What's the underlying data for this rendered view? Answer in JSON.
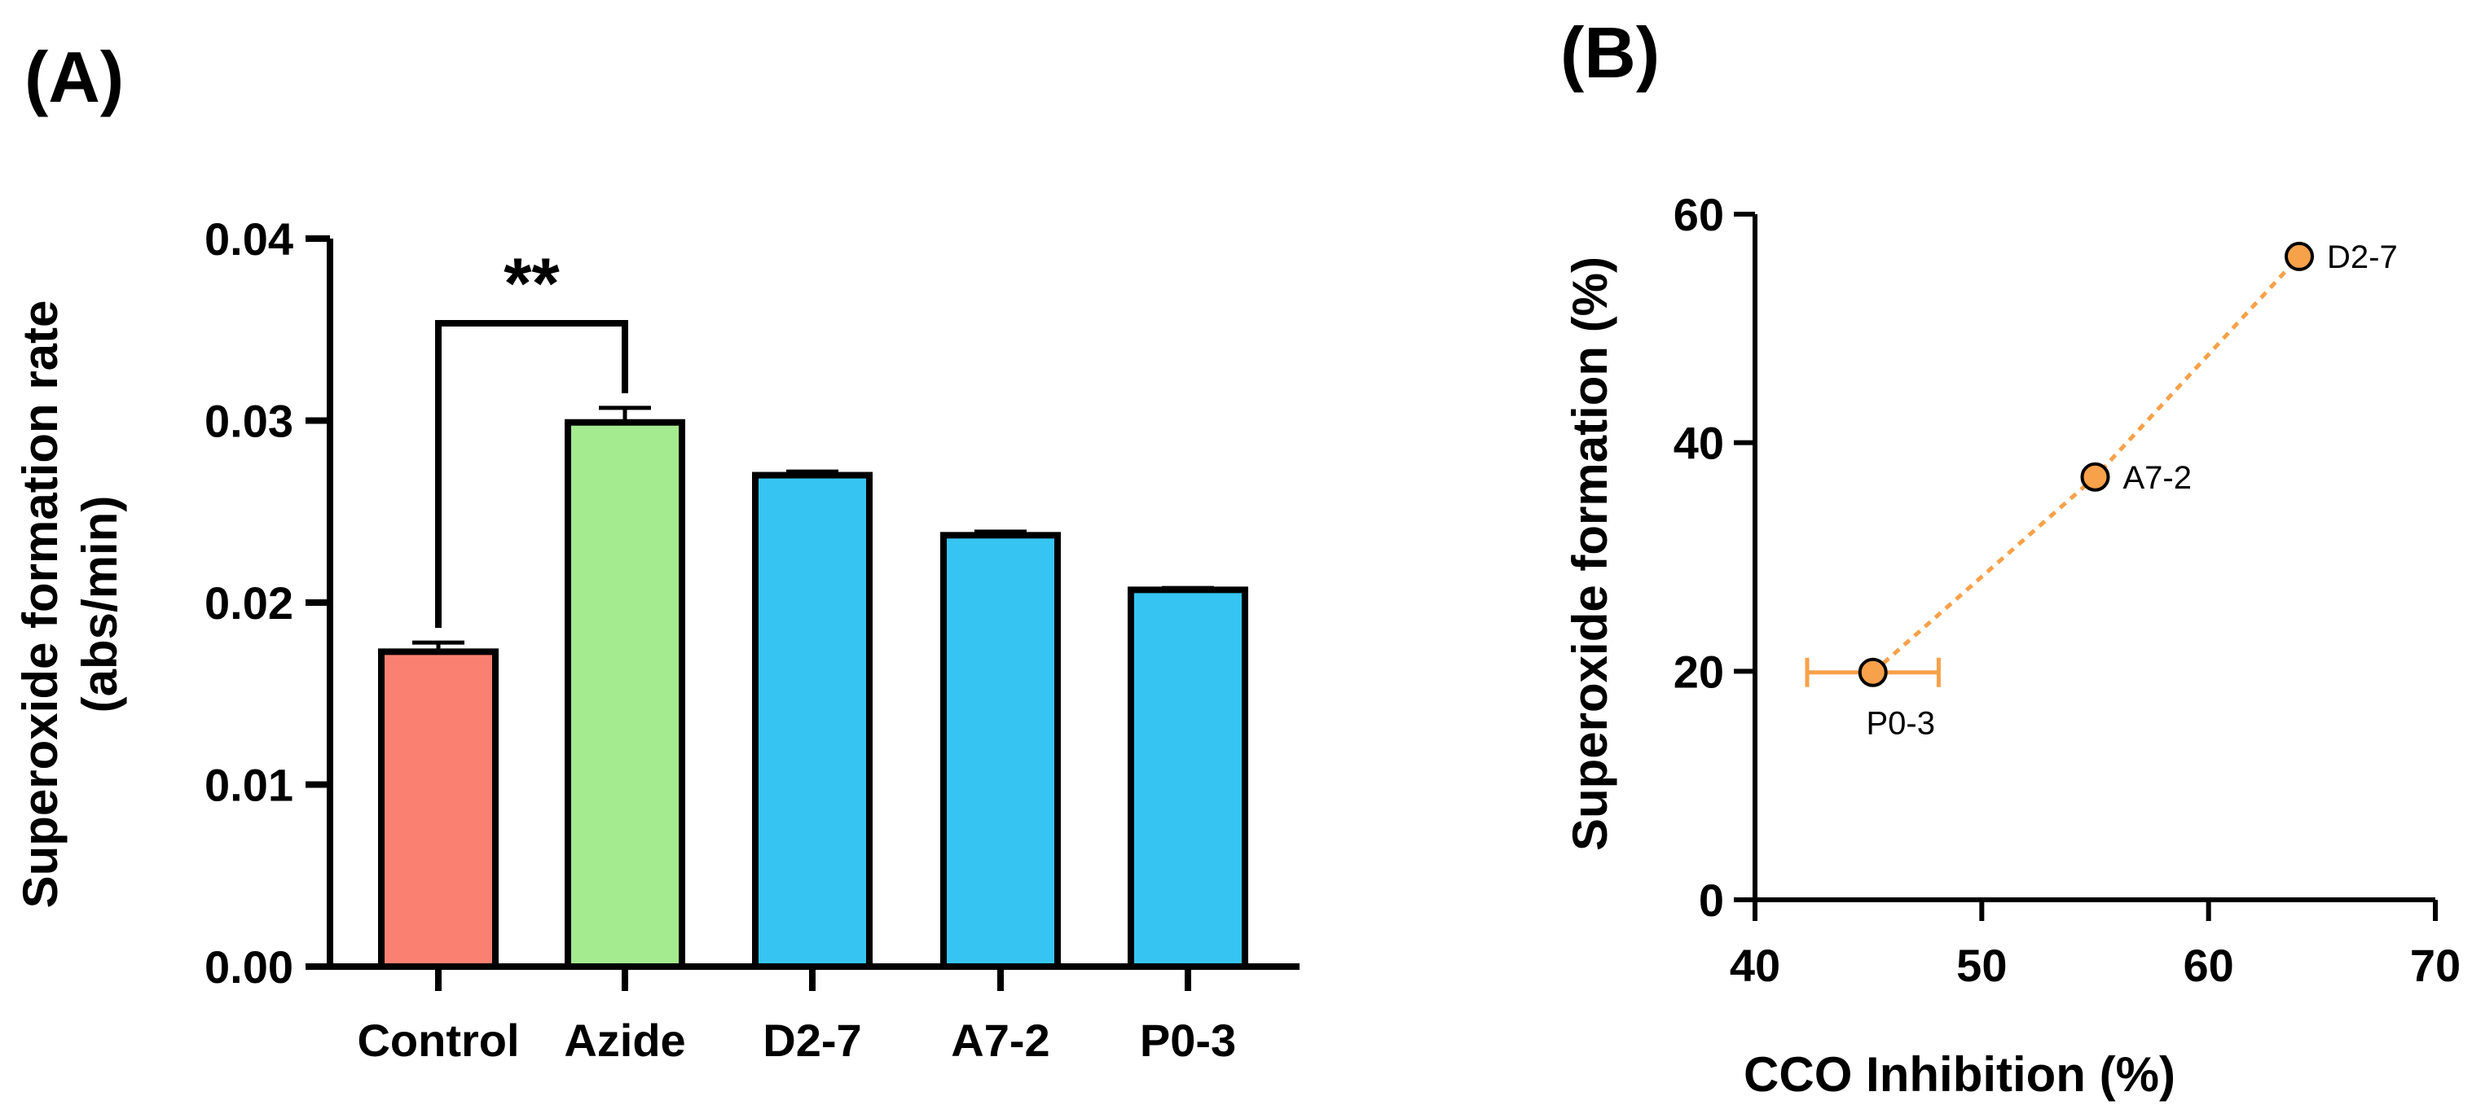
{
  "chart_data": [
    {
      "panel_label": "(A)",
      "type": "bar",
      "categories": [
        "Control",
        "Azide",
        "D2-7",
        "A7-2",
        "P0-3"
      ],
      "values": [
        0.0173,
        0.0299,
        0.027,
        0.0237,
        0.0207
      ],
      "errors": [
        0.0005,
        0.0008,
        0.0002,
        0.0002,
        0.0001
      ],
      "colors": [
        "#FA8072",
        "#A4EA8E",
        "#36C5F2",
        "#36C5F2",
        "#36C5F2"
      ],
      "ylabel_line1": "Superoxide formation rate",
      "ylabel_line2": "(abs/min)",
      "xlabel": "",
      "ylim": [
        0,
        0.04
      ],
      "yticks": [
        0.0,
        0.01,
        0.02,
        0.03,
        0.04
      ],
      "ytick_labels": [
        "0.00",
        "0.01",
        "0.02",
        "0.03",
        "0.04"
      ],
      "significance": {
        "from": "Control",
        "to": "Azide",
        "label": "**"
      }
    },
    {
      "panel_label": "(B)",
      "type": "scatter",
      "points": [
        {
          "label": "P0-3",
          "x": 45.2,
          "y": 19.9,
          "xerr": 2.9
        },
        {
          "label": "A7-2",
          "x": 55.0,
          "y": 37.0,
          "xerr": 0
        },
        {
          "label": "D2-7",
          "x": 64.0,
          "y": 56.3,
          "xerr": 0
        }
      ],
      "line_style": "dotted",
      "point_color": "#F7A14A",
      "xlabel": "CCO Inhibition (%)",
      "ylabel": "Superoxide formation (%)",
      "xlim": [
        40,
        70
      ],
      "ylim": [
        0,
        60
      ],
      "xticks": [
        40,
        50,
        60,
        70
      ],
      "yticks": [
        0,
        20,
        40,
        60
      ]
    }
  ]
}
